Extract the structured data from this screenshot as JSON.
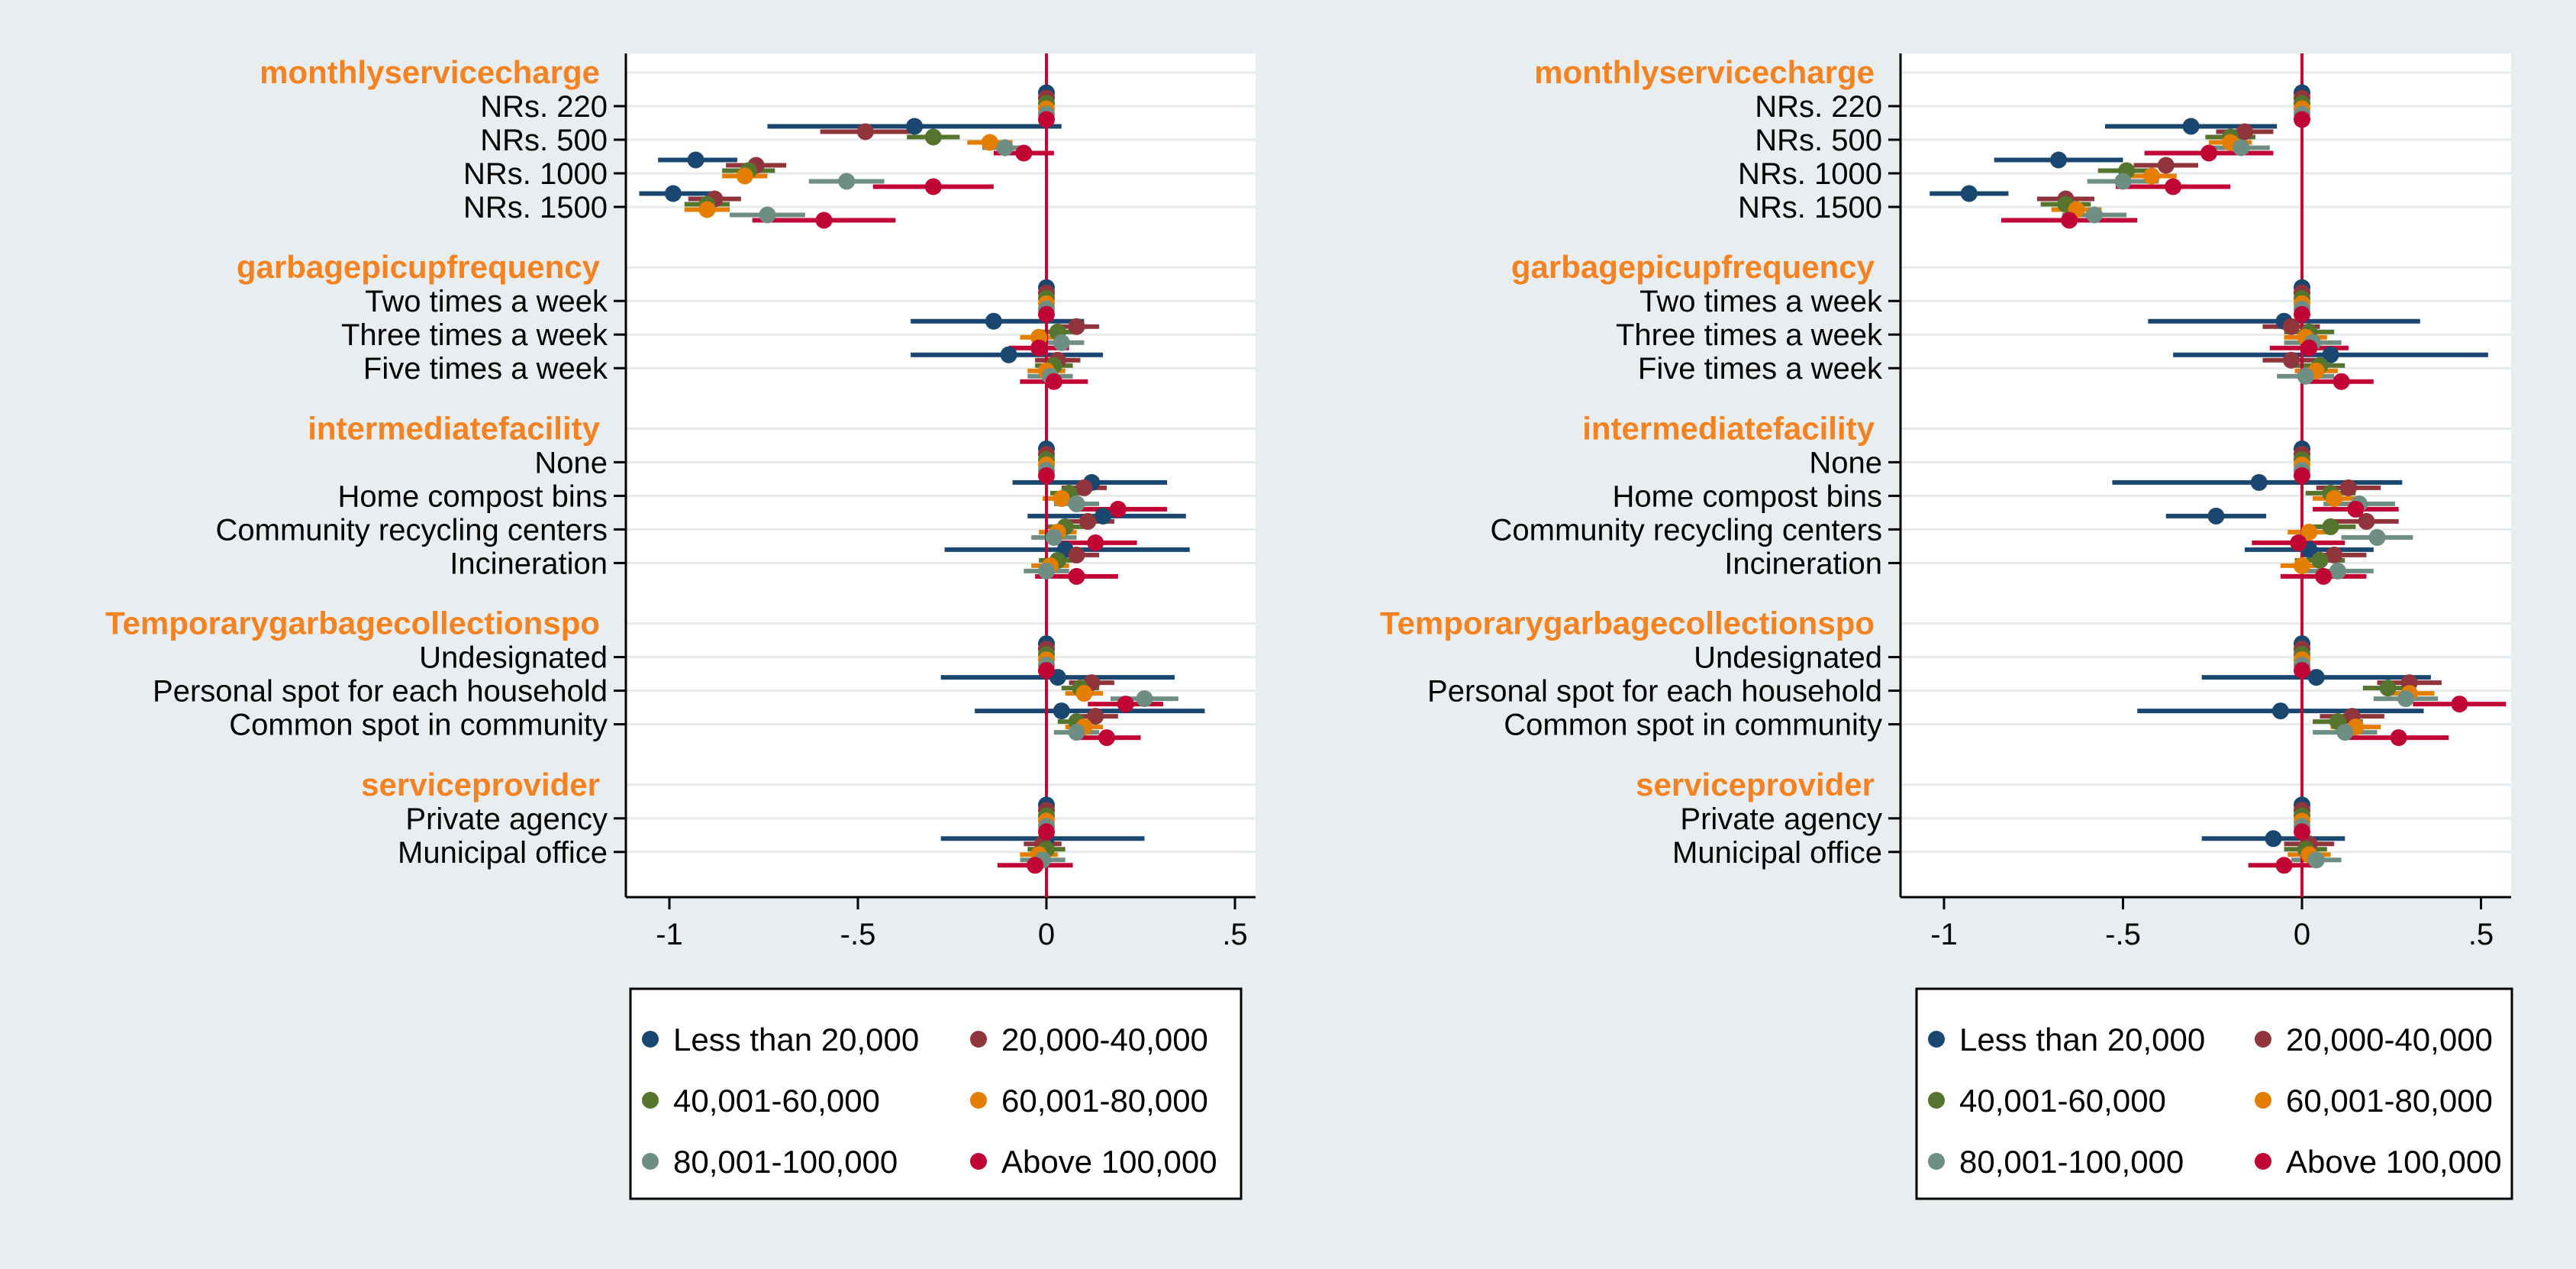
{
  "chart_data": [
    {
      "type": "scatter",
      "title": "",
      "xlabel": "",
      "ylabel": "",
      "xlim": [
        -1.1,
        0.55
      ],
      "xticks": [
        -1,
        -0.5,
        0,
        0.5
      ],
      "xtick_labels": [
        "-1",
        "-.5",
        "0",
        ".5"
      ],
      "reference_line_x": 0,
      "grid": true,
      "legend_position": "bottom",
      "groups": [
        {
          "label": "monthlyservicecharge",
          "categories": [
            "NRs. 220",
            "NRs. 500",
            "NRs. 1000",
            "NRs. 1500"
          ]
        },
        {
          "label": "garbagepicupfrequency",
          "categories": [
            "Two times a week",
            "Three times a week",
            "Five times a week"
          ]
        },
        {
          "label": "intermediatefacility",
          "categories": [
            "None",
            "Home compost bins",
            "Community recycling centers",
            "Incineration"
          ]
        },
        {
          "label": "Temporarygarbagecollectionspo",
          "categories": [
            "Undesignated",
            "Personal spot for each household",
            "Common spot in community"
          ]
        },
        {
          "label": "serviceprovider",
          "categories": [
            "Private agency",
            "Municipal office"
          ]
        }
      ],
      "series": [
        {
          "name": "Less than 20,000",
          "color": "#1a476f",
          "estimates": [
            0,
            -0.35,
            -0.93,
            -0.99,
            0,
            -0.14,
            -0.1,
            0,
            0.12,
            0.15,
            0.05,
            0,
            0.03,
            0.04,
            0,
            0
          ],
          "ci_low": [
            0,
            -0.74,
            -1.03,
            -1.08,
            0,
            -0.36,
            -0.36,
            0,
            -0.09,
            -0.05,
            -0.27,
            0,
            -0.28,
            -0.19,
            0,
            -0.28
          ],
          "ci_high": [
            0,
            0.04,
            -0.82,
            -0.88,
            0,
            0.1,
            0.15,
            0,
            0.32,
            0.37,
            0.38,
            0,
            0.34,
            0.42,
            0,
            0.26
          ]
        },
        {
          "name": "20,000-40,000",
          "color": "#90353b",
          "estimates": [
            0,
            -0.48,
            -0.77,
            -0.88,
            0,
            0.08,
            0.03,
            0,
            0.1,
            0.11,
            0.08,
            0,
            0.12,
            0.13,
            0,
            -0.01
          ],
          "ci_low": [
            0,
            -0.6,
            -0.85,
            -0.95,
            0,
            0.02,
            -0.03,
            0,
            0.04,
            0.04,
            0.02,
            0,
            0.06,
            0.07,
            0,
            -0.06
          ],
          "ci_high": [
            0,
            -0.36,
            -0.69,
            -0.81,
            0,
            0.14,
            0.09,
            0,
            0.16,
            0.18,
            0.14,
            0,
            0.18,
            0.19,
            0,
            0.04
          ]
        },
        {
          "name": "40,001-60,000",
          "color": "#55752f",
          "estimates": [
            0,
            -0.3,
            -0.79,
            -0.9,
            0,
            0.03,
            0.02,
            0,
            0.06,
            0.05,
            0.03,
            0,
            0.09,
            0.08,
            0,
            0
          ],
          "ci_low": [
            0,
            -0.37,
            -0.86,
            -0.96,
            0,
            -0.02,
            -0.03,
            0,
            0.01,
            0.0,
            -0.02,
            0,
            0.04,
            0.03,
            0,
            -0.05
          ],
          "ci_high": [
            0,
            -0.23,
            -0.72,
            -0.84,
            0,
            0.08,
            0.07,
            0,
            0.11,
            0.1,
            0.08,
            0,
            0.14,
            0.13,
            0,
            0.05
          ]
        },
        {
          "name": "60,001-80,000",
          "color": "#e37e00",
          "estimates": [
            0,
            -0.15,
            -0.8,
            -0.9,
            0,
            -0.02,
            0.0,
            0,
            0.04,
            0.03,
            0.01,
            0,
            0.1,
            0.1,
            0,
            -0.02
          ],
          "ci_low": [
            0,
            -0.21,
            -0.86,
            -0.96,
            0,
            -0.07,
            -0.05,
            0,
            -0.01,
            -0.02,
            -0.04,
            0,
            0.05,
            0.05,
            0,
            -0.07
          ],
          "ci_high": [
            0,
            -0.09,
            -0.74,
            -0.84,
            0,
            0.03,
            0.05,
            0,
            0.09,
            0.08,
            0.06,
            0,
            0.15,
            0.15,
            0,
            0.03
          ]
        },
        {
          "name": "80,001-100,000",
          "color": "#6e8e84",
          "estimates": [
            0,
            -0.11,
            -0.53,
            -0.74,
            0,
            0.04,
            0.01,
            0,
            0.08,
            0.02,
            0.0,
            0,
            0.26,
            0.08,
            0,
            -0.01
          ],
          "ci_low": [
            0,
            -0.17,
            -0.63,
            -0.84,
            0,
            -0.02,
            -0.05,
            0,
            0.02,
            -0.04,
            -0.06,
            0,
            0.17,
            0.02,
            0,
            -0.07
          ],
          "ci_high": [
            0,
            -0.05,
            -0.43,
            -0.64,
            0,
            0.1,
            0.07,
            0,
            0.14,
            0.08,
            0.06,
            0,
            0.35,
            0.14,
            0,
            0.05
          ]
        },
        {
          "name": "Above 100,000",
          "color": "#c10534",
          "estimates": [
            0,
            -0.06,
            -0.3,
            -0.59,
            0,
            -0.02,
            0.02,
            0,
            0.19,
            0.13,
            0.08,
            0,
            0.21,
            0.16,
            0,
            -0.03
          ],
          "ci_low": [
            0,
            -0.14,
            -0.46,
            -0.78,
            0,
            -0.1,
            -0.07,
            0,
            0.07,
            0.02,
            -0.03,
            0,
            0.11,
            0.07,
            0,
            -0.13
          ],
          "ci_high": [
            0,
            0.02,
            -0.14,
            -0.4,
            0,
            0.06,
            0.11,
            0,
            0.32,
            0.24,
            0.19,
            0,
            0.31,
            0.25,
            0,
            0.07
          ]
        }
      ]
    },
    {
      "type": "scatter",
      "title": "",
      "xlabel": "",
      "ylabel": "",
      "xlim": [
        -1.1,
        0.55
      ],
      "xticks": [
        -1,
        -0.5,
        0,
        0.5
      ],
      "xtick_labels": [
        "-1",
        "-.5",
        "0",
        ".5"
      ],
      "reference_line_x": 0,
      "grid": true,
      "legend_position": "bottom",
      "groups": [
        {
          "label": "monthlyservicecharge",
          "categories": [
            "NRs. 220",
            "NRs. 500",
            "NRs. 1000",
            "NRs. 1500"
          ]
        },
        {
          "label": "garbagepicupfrequency",
          "categories": [
            "Two times a week",
            "Three times a week",
            "Five times a week"
          ]
        },
        {
          "label": "intermediatefacility",
          "categories": [
            "None",
            "Home compost bins",
            "Community recycling centers",
            "Incineration"
          ]
        },
        {
          "label": "Temporarygarbagecollectionspo",
          "categories": [
            "Undesignated",
            "Personal spot for each household",
            "Common spot in community"
          ]
        },
        {
          "label": "serviceprovider",
          "categories": [
            "Private agency",
            "Municipal office"
          ]
        }
      ],
      "series": [
        {
          "name": "Less than 20,000",
          "color": "#1a476f",
          "estimates": [
            0,
            -0.31,
            -0.68,
            -0.93,
            0,
            -0.05,
            0.08,
            0,
            -0.12,
            -0.24,
            0.02,
            0,
            0.04,
            -0.06,
            0,
            -0.08
          ],
          "ci_low": [
            0,
            -0.55,
            -0.86,
            -1.04,
            0,
            -0.43,
            -0.36,
            0,
            -0.53,
            -0.38,
            -0.16,
            0,
            -0.28,
            -0.46,
            0,
            -0.28
          ],
          "ci_high": [
            0,
            -0.07,
            -0.5,
            -0.82,
            0,
            0.33,
            0.52,
            0,
            0.28,
            -0.1,
            0.2,
            0,
            0.36,
            0.34,
            0,
            0.12
          ]
        },
        {
          "name": "20,000-40,000",
          "color": "#90353b",
          "estimates": [
            0,
            -0.16,
            -0.38,
            -0.66,
            0,
            -0.03,
            -0.03,
            0,
            0.13,
            0.18,
            0.09,
            0,
            0.3,
            0.14,
            0,
            0.02
          ],
          "ci_low": [
            0,
            -0.24,
            -0.47,
            -0.74,
            0,
            -0.11,
            -0.11,
            0,
            0.04,
            0.09,
            0.0,
            0,
            0.21,
            0.05,
            0,
            -0.05
          ],
          "ci_high": [
            0,
            -0.08,
            -0.29,
            -0.58,
            0,
            0.05,
            0.05,
            0,
            0.22,
            0.27,
            0.18,
            0,
            0.39,
            0.23,
            0,
            0.09
          ]
        },
        {
          "name": "40,001-60,000",
          "color": "#55752f",
          "estimates": [
            0,
            -0.2,
            -0.49,
            -0.66,
            0,
            0.02,
            0.05,
            0,
            0.08,
            0.08,
            0.05,
            0,
            0.24,
            0.1,
            0,
            0.01
          ],
          "ci_low": [
            0,
            -0.27,
            -0.57,
            -0.73,
            0,
            -0.05,
            -0.02,
            0,
            0.01,
            0.01,
            -0.02,
            0,
            0.17,
            0.03,
            0,
            -0.05
          ],
          "ci_high": [
            0,
            -0.13,
            -0.41,
            -0.59,
            0,
            0.09,
            0.12,
            0,
            0.15,
            0.15,
            0.12,
            0,
            0.31,
            0.17,
            0,
            0.07
          ]
        },
        {
          "name": "60,001-80,000",
          "color": "#e37e00",
          "estimates": [
            0,
            -0.2,
            -0.42,
            -0.63,
            0,
            0.01,
            0.04,
            0,
            0.09,
            0.02,
            0.0,
            0,
            0.3,
            0.15,
            0,
            0.02
          ],
          "ci_low": [
            0,
            -0.26,
            -0.49,
            -0.7,
            0,
            -0.05,
            -0.02,
            0,
            0.03,
            -0.04,
            -0.06,
            0,
            0.23,
            0.08,
            0,
            -0.04
          ],
          "ci_high": [
            0,
            -0.14,
            -0.35,
            -0.56,
            0,
            0.07,
            0.1,
            0,
            0.15,
            0.08,
            0.06,
            0,
            0.37,
            0.22,
            0,
            0.08
          ]
        },
        {
          "name": "80,001-100,000",
          "color": "#6e8e84",
          "estimates": [
            0,
            -0.17,
            -0.5,
            -0.58,
            0,
            0.03,
            0.01,
            0,
            0.16,
            0.21,
            0.1,
            0,
            0.29,
            0.12,
            0,
            0.04
          ],
          "ci_low": [
            0,
            -0.25,
            -0.6,
            -0.67,
            0,
            -0.05,
            -0.07,
            0,
            0.06,
            0.11,
            0.0,
            0,
            0.2,
            0.03,
            0,
            -0.03
          ],
          "ci_high": [
            0,
            -0.09,
            -0.4,
            -0.49,
            0,
            0.11,
            0.09,
            0,
            0.26,
            0.31,
            0.2,
            0,
            0.38,
            0.21,
            0,
            0.11
          ]
        },
        {
          "name": "Above 100,000",
          "color": "#c10534",
          "estimates": [
            0,
            -0.26,
            -0.36,
            -0.65,
            0,
            0.02,
            0.11,
            0,
            0.15,
            -0.01,
            0.06,
            0,
            0.44,
            0.27,
            0,
            -0.05
          ],
          "ci_low": [
            0,
            -0.44,
            -0.52,
            -0.84,
            0,
            -0.09,
            0.02,
            0,
            0.03,
            -0.14,
            -0.06,
            0,
            0.31,
            0.13,
            0,
            -0.15
          ],
          "ci_high": [
            0,
            -0.08,
            -0.2,
            -0.46,
            0,
            0.13,
            0.2,
            0,
            0.27,
            0.12,
            0.18,
            0,
            0.57,
            0.41,
            0,
            0.05
          ]
        }
      ]
    }
  ]
}
